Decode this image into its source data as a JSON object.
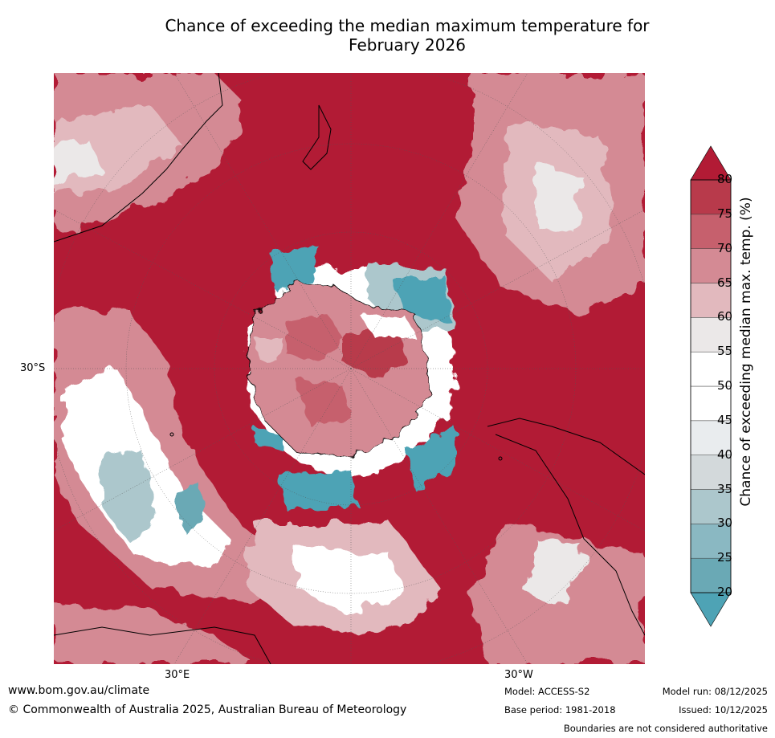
{
  "title": {
    "line1": "Chance of exceeding the median maximum temperature for",
    "line2": "February 2026"
  },
  "map": {
    "projection": "south polar stereographic",
    "axis_labels": {
      "left_lat": "30°S",
      "bottom_left_lon": "30°E",
      "bottom_right_lon": "30°W"
    },
    "colors": {
      "frame": "#b21b35",
      "land_line": "#000000",
      "graticule": "#555555"
    }
  },
  "colorbar": {
    "label": "Chance of exceeding median max. temp. (%)",
    "ticks": [
      "20",
      "25",
      "30",
      "35",
      "40",
      "45",
      "50",
      "55",
      "60",
      "65",
      "70",
      "75",
      "80"
    ],
    "colors": [
      "#4ea3b5",
      "#6aa9b5",
      "#8ab8c2",
      "#acc7cc",
      "#d3d9db",
      "#e9ecee",
      "#ffffff",
      "#ffffff",
      "#ebe8e8",
      "#e2b9be",
      "#d48a94",
      "#c6606d",
      "#b83a4b",
      "#b21b35"
    ]
  },
  "footer": {
    "website": "www.bom.gov.au/climate",
    "copyright": "© Commonwealth of Australia 2025, Australian Bureau of Meteorology",
    "model": "Model: ACCESS-S2",
    "base_period": "Base period: 1981-2018",
    "model_run": "Model run: 08/12/2025",
    "issued": "Issued: 10/12/2025",
    "disclaimer": "Boundaries are not considered authoritative"
  }
}
